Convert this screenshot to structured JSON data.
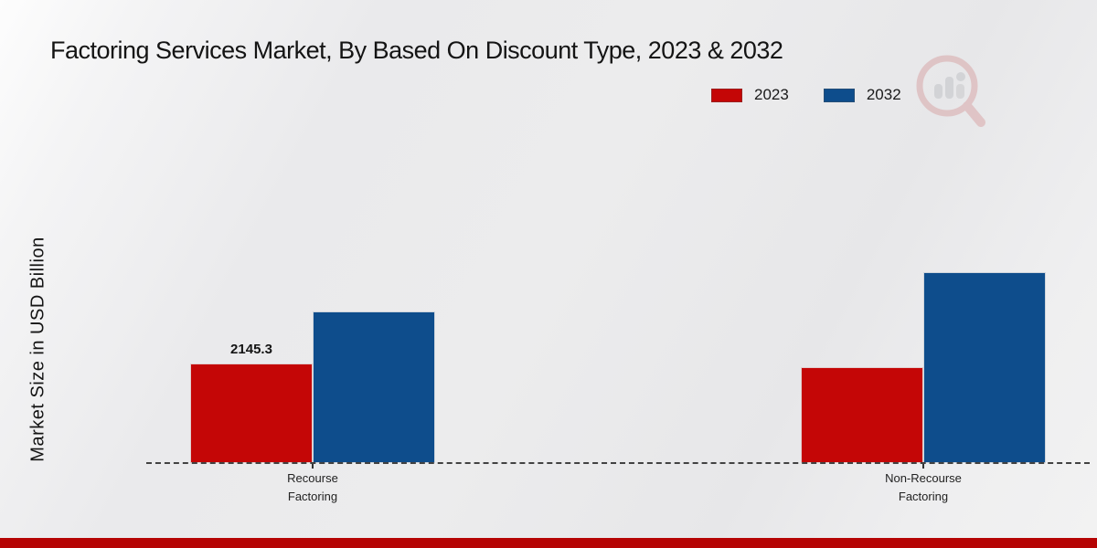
{
  "chart_data": {
    "type": "bar",
    "title": "Factoring Services Market, By Based On Discount Type, 2023 & 2032",
    "ylabel": "Market Size in USD Billion",
    "xlabel": "",
    "categories": [
      "Recourse Factoring",
      "Non-Recourse Factoring"
    ],
    "category_label_lines": [
      "Recourse\nFactoring",
      "Non-Recourse\nFactoring"
    ],
    "series": [
      {
        "name": "2023",
        "color": "#c40606",
        "values": [
          2145.3,
          2066
        ]
      },
      {
        "name": "2032",
        "color": "#0e4d8c",
        "values": [
          3268,
          4114
        ]
      }
    ],
    "data_labels": [
      {
        "series_index": 0,
        "category_index": 0,
        "text": "2145.3"
      }
    ],
    "ylim": [
      0,
      4500
    ],
    "grid": false,
    "legend_position": "top-right",
    "baseline_style": "dashed-line"
  },
  "colors": {
    "series_2023": "#c40606",
    "series_2032": "#0e4d8c",
    "footer_bar": "#b50404",
    "baseline": "#424242",
    "background": "#eaeaec"
  },
  "watermark": {
    "name": "magnifier-bar-chart-logo"
  }
}
